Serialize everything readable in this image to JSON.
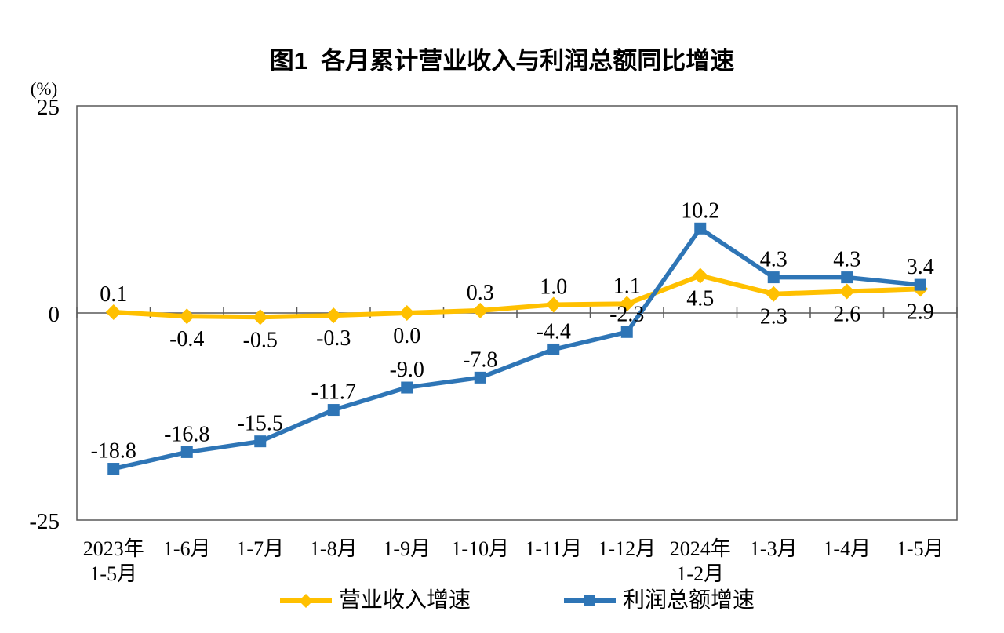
{
  "page": {
    "title": "图1  各月累计营业收入与利润总额同比增速"
  },
  "chart_data": {
    "type": "line",
    "title": "图1  各月累计营业收入与利润总额同比增速",
    "unit_label": "(%)",
    "xlabel": "",
    "ylabel": "(%)",
    "ylim": [
      -25,
      25
    ],
    "y_ticks": [
      25,
      0,
      -25
    ],
    "grid": false,
    "legend_position": "bottom",
    "categories": [
      "2023年\n1-5月",
      "1-6月",
      "1-7月",
      "1-8月",
      "1-9月",
      "1-10月",
      "1-11月",
      "1-12月",
      "2024年\n1-2月",
      "1-3月",
      "1-4月",
      "1-5月"
    ],
    "series": [
      {
        "name": "营业收入增速",
        "color": "#FFC000",
        "marker": "diamond",
        "values": [
          0.1,
          -0.4,
          -0.5,
          -0.3,
          0.0,
          0.3,
          1.0,
          1.1,
          4.5,
          2.3,
          2.6,
          2.9
        ],
        "label_positions": [
          "above",
          "below",
          "below",
          "below",
          "below",
          "above",
          "above",
          "above",
          "below",
          "below",
          "below",
          "below"
        ]
      },
      {
        "name": "利润总额增速",
        "color": "#2E75B6",
        "marker": "square",
        "values": [
          -18.8,
          -16.8,
          -15.5,
          -11.7,
          -9.0,
          -7.8,
          -4.4,
          -2.3,
          10.2,
          4.3,
          4.3,
          3.4
        ],
        "label_positions": [
          "above",
          "above",
          "above",
          "above",
          "above",
          "above",
          "above",
          "above",
          "above",
          "above",
          "above",
          "above"
        ]
      }
    ],
    "axis_color": "#595959",
    "text_color": "#000000"
  }
}
